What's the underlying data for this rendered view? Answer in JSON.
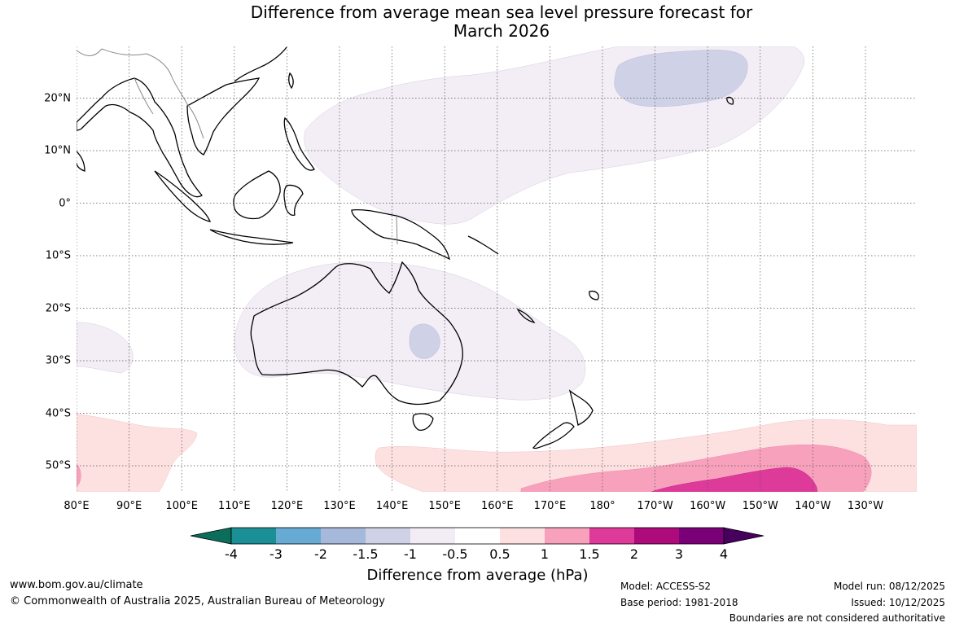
{
  "title": {
    "line1": "Difference from average mean sea level pressure forecast for",
    "line2": "March 2026"
  },
  "map": {
    "type": "filled-contour-map",
    "region": "Indo-Pacific / Australia",
    "lon_labels": [
      "80°E",
      "90°E",
      "100°E",
      "110°E",
      "120°E",
      "130°E",
      "140°E",
      "150°E",
      "160°E",
      "170°E",
      "180°",
      "170°W",
      "160°W",
      "150°W",
      "140°W",
      "130°W"
    ],
    "lat_labels": [
      "20°N",
      "10°N",
      "0°",
      "10°S",
      "20°S",
      "30°S",
      "40°S",
      "50°S"
    ],
    "gridlines": true,
    "coastlines": true,
    "regions_visible": [
      {
        "label": "Western Pacific north of equator",
        "category": "-0.5 to 0.5 (slightly negative)"
      },
      {
        "label": "Central North Pacific near Hawaii",
        "category": "-1.5 to -1"
      },
      {
        "label": "Australia and Tasman Sea",
        "category": "-0.5 to 0.5 (slightly negative)"
      },
      {
        "label": "Central Australia",
        "category": "-1.5 to -1"
      },
      {
        "label": "Southern Ocean south of New Zealand",
        "category": "1.5 to 2"
      }
    ]
  },
  "colorbar": {
    "title": "Difference from average (hPa)",
    "tick_labels": [
      "-4",
      "-3",
      "-2",
      "-1.5",
      "-1",
      "-0.5",
      "0.5",
      "1",
      "1.5",
      "2",
      "3",
      "4"
    ],
    "colors": [
      "#0b6e5a",
      "#1a8f96",
      "#67aad3",
      "#a6b9db",
      "#cfd1e6",
      "#f2ecf5",
      "#ffffff",
      "#fde0e0",
      "#f8a1bd",
      "#dd3a9a",
      "#ad0a7c",
      "#7a0078",
      "#48005e"
    ]
  },
  "footer": {
    "website": "www.bom.gov.au/climate",
    "copyright": "© Commonwealth of Australia 2025, Australian Bureau of Meteorology",
    "model": "Model: ACCESS-S2",
    "base_period": "Base period: 1981-2018",
    "model_run": "Model run: 08/12/2025",
    "issued": "Issued: 10/12/2025",
    "disclaimer": "Boundaries are not considered authoritative"
  }
}
